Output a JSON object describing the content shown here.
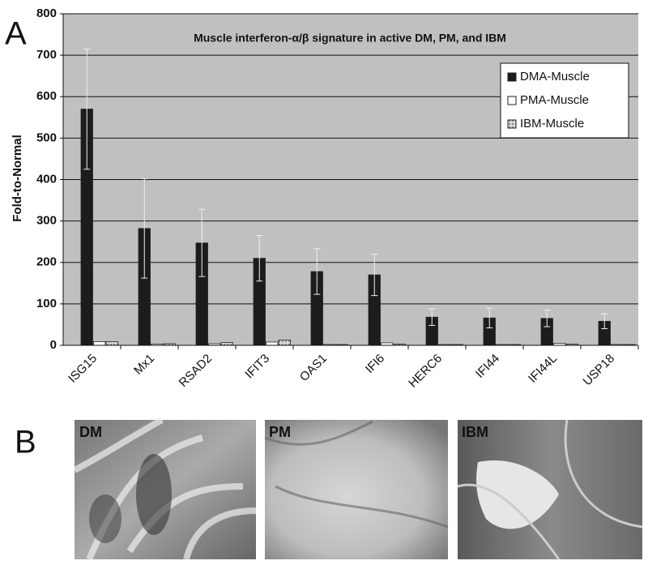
{
  "chart_data": {
    "type": "bar",
    "title": "Muscle interferon-α/β signature in active DM, PM, and IBM",
    "y_label": "Fold-to-Normal",
    "categories": [
      "ISG15",
      "Mx1",
      "RSAD2",
      "IFIT3",
      "OAS1",
      "IFI6",
      "HERC6",
      "IFI44",
      "IFI44L",
      "USP18"
    ],
    "series": [
      {
        "name": "DMA-Muscle",
        "color": "#1c1c1c",
        "values": [
          570,
          282,
          247,
          210,
          178,
          170,
          68,
          66,
          65,
          58
        ],
        "errors": [
          145,
          120,
          81,
          55,
          55,
          50,
          20,
          24,
          20,
          18
        ]
      },
      {
        "name": "PMA-Muscle",
        "color": "#ffffff",
        "values": [
          9,
          3,
          4,
          8,
          2,
          6,
          2,
          2,
          5,
          2
        ]
      },
      {
        "name": "IBM-Muscle",
        "color": "#bdbdbd",
        "values": [
          9,
          4,
          7,
          13,
          2,
          3,
          2,
          2,
          3,
          2
        ]
      }
    ],
    "ylim": [
      0,
      800
    ],
    "yticks": [
      0,
      100,
      200,
      300,
      400,
      500,
      600,
      700,
      800
    ],
    "grid": true,
    "legend": "upper right"
  },
  "figure": {
    "panel_labels": [
      "A",
      "B"
    ],
    "images": [
      {
        "label": "DM"
      },
      {
        "label": "PM"
      },
      {
        "label": "IBM"
      }
    ]
  }
}
